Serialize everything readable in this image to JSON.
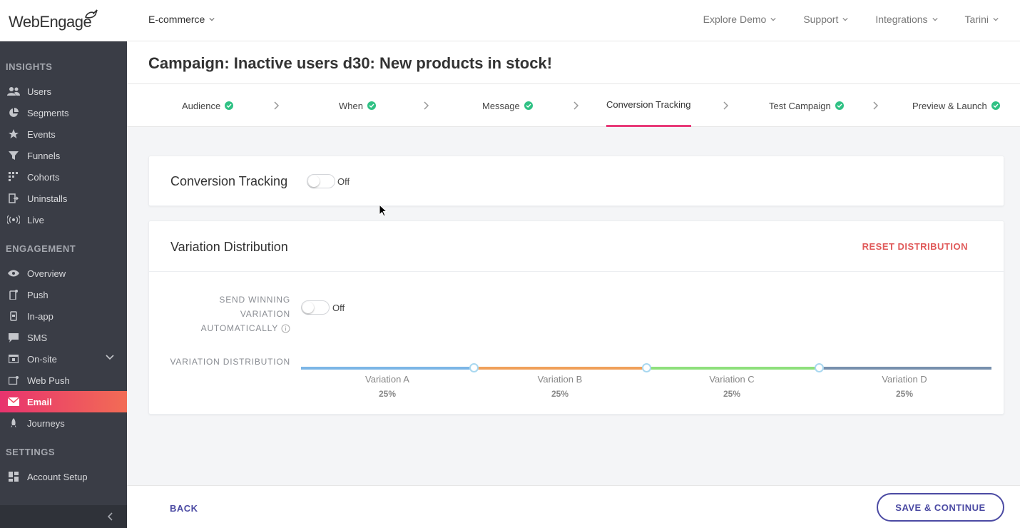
{
  "app": {
    "logo": "WebEngage",
    "project": "E-commerce"
  },
  "topnav": {
    "items": [
      "Explore Demo",
      "Support",
      "Integrations",
      "Tarini"
    ]
  },
  "sidebar": {
    "insights_title": "INSIGHTS",
    "insights": [
      "Users",
      "Segments",
      "Events",
      "Funnels",
      "Cohorts",
      "Uninstalls",
      "Live"
    ],
    "engagement_title": "ENGAGEMENT",
    "engagement": [
      "Overview",
      "Push",
      "In-app",
      "SMS",
      "On-site",
      "Web Push",
      "Email",
      "Journeys"
    ],
    "settings_title": "SETTINGS",
    "settings": [
      "Account Setup"
    ],
    "active": "Email"
  },
  "page": {
    "title": "Campaign: Inactive users d30: New products in stock!"
  },
  "steps": [
    "Audience",
    "When",
    "Message",
    "Conversion Tracking",
    "Test Campaign",
    "Preview & Launch"
  ],
  "conversion": {
    "label": "Conversion Tracking",
    "toggle_state": "Off"
  },
  "distribution": {
    "title": "Variation Distribution",
    "reset_label": "RESET DISTRIBUTION",
    "send_winning_lines": [
      "SEND WINNING",
      "VARIATION",
      "AUTOMATICALLY"
    ],
    "send_winning_state": "Off",
    "vd_label": "VARIATION DISTRIBUTION",
    "variations": [
      {
        "name": "Variation A",
        "pct": "25%",
        "color": "#7cb6e6"
      },
      {
        "name": "Variation B",
        "pct": "25%",
        "color": "#f0a05a"
      },
      {
        "name": "Variation C",
        "pct": "25%",
        "color": "#8ee07c"
      },
      {
        "name": "Variation D",
        "pct": "25%",
        "color": "#7790ad"
      }
    ]
  },
  "footer": {
    "back_label": "BACK",
    "save_label": "SAVE & CONTINUE"
  },
  "colors": {
    "accent": "#e83a78",
    "primary": "#4b4aa3",
    "success": "#2fc184",
    "sidebar_bg": "#3a3d46"
  }
}
